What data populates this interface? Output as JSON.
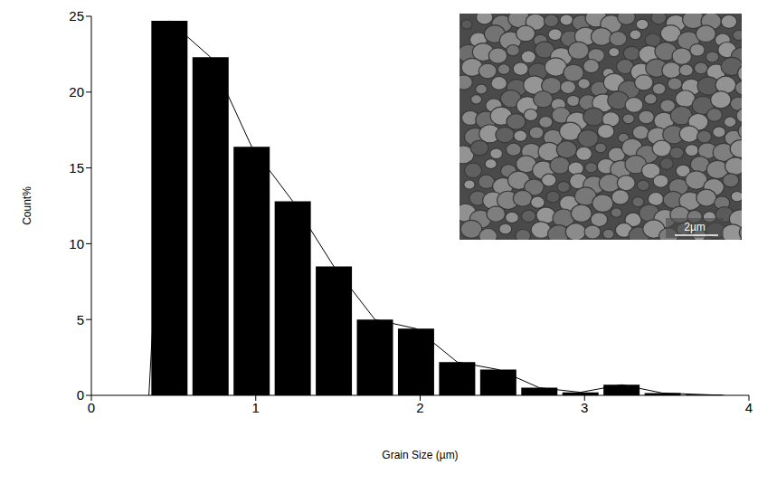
{
  "chart_data": {
    "type": "histogram",
    "x_label": "Grain Size (µm)",
    "y_label": "Count%",
    "bins": [
      0.35,
      0.6,
      0.85,
      1.1,
      1.35,
      1.6,
      1.85,
      2.1,
      2.35,
      2.6,
      2.85,
      3.1,
      3.35,
      3.6,
      3.85
    ],
    "counts": [
      24.7,
      22.3,
      16.4,
      12.8,
      8.5,
      5.0,
      4.4,
      2.2,
      1.7,
      0.5,
      0.2,
      0.7,
      0.15,
      0.05
    ],
    "color": "#000000",
    "xlim": [
      0,
      4
    ],
    "xticks": [
      0,
      1,
      2,
      3,
      4
    ],
    "ylim": [
      0,
      25
    ],
    "yticks": [
      0,
      5,
      10,
      15,
      20,
      25
    ],
    "grid": false,
    "annotations": [
      "2µm"
    ]
  }
}
